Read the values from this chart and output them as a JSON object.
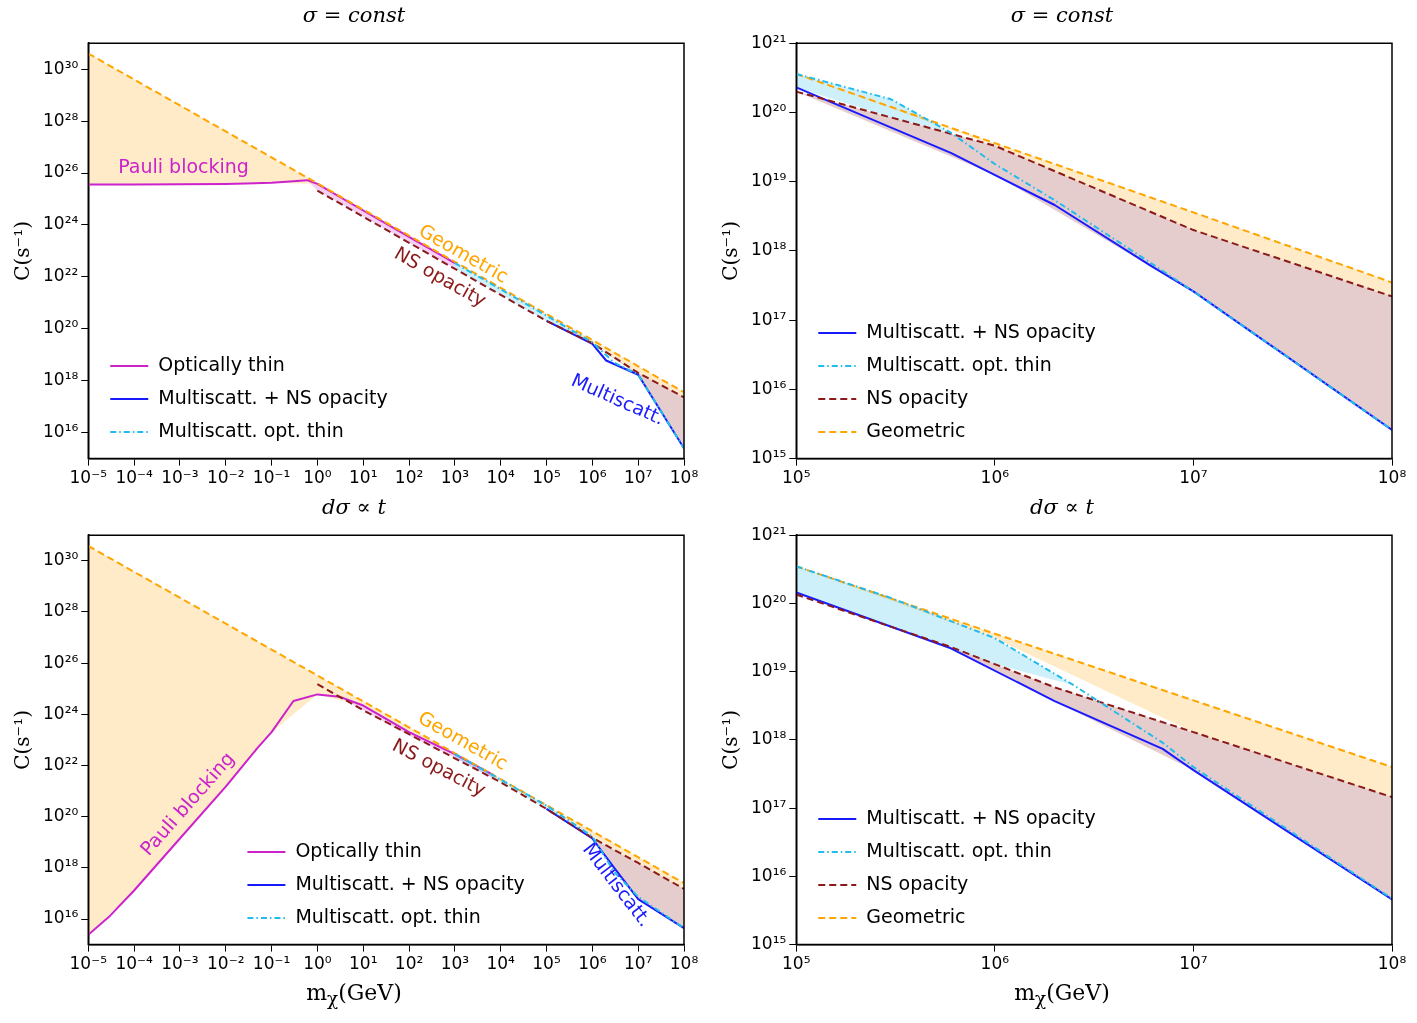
{
  "chart_data": [
    {
      "type": "line",
      "title": "σ = const",
      "ylabel": "C(s⁻¹)",
      "log": "xy",
      "legend": "bottom left",
      "xlim": [
        1e-05,
        100000000.0
      ],
      "ylim": [
        1000000000000000.0,
        1e+31
      ],
      "xticks": [
        {
          "value": 1e-05,
          "label": "10⁻⁵"
        },
        {
          "value": 0.0001,
          "label": "10⁻⁴"
        },
        {
          "value": 0.001,
          "label": "10⁻³"
        },
        {
          "value": 0.01,
          "label": "10⁻²"
        },
        {
          "value": 0.1,
          "label": "10⁻¹"
        },
        {
          "value": 1,
          "label": "10⁰"
        },
        {
          "value": 10,
          "label": "10¹"
        },
        {
          "value": 100,
          "label": "10²"
        },
        {
          "value": 1000.0,
          "label": "10³"
        },
        {
          "value": 10000.0,
          "label": "10⁴"
        },
        {
          "value": 100000.0,
          "label": "10⁵"
        },
        {
          "value": 1000000.0,
          "label": "10⁶"
        },
        {
          "value": 10000000.0,
          "label": "10⁷"
        },
        {
          "value": 100000000.0,
          "label": "10⁸"
        }
      ],
      "yticks": [
        {
          "value": 1e+16,
          "label": "10¹⁶"
        },
        {
          "value": 1e+18,
          "label": "10¹⁸"
        },
        {
          "value": 1e+20,
          "label": "10²⁰"
        },
        {
          "value": 1e+22,
          "label": "10²²"
        },
        {
          "value": 1e+24,
          "label": "10²⁴"
        },
        {
          "value": 1e+26,
          "label": "10²⁶"
        },
        {
          "value": 1e+28,
          "label": "10²⁸"
        },
        {
          "value": 1e+30,
          "label": "10³⁰"
        }
      ],
      "series": [
        {
          "name": "Optically thin",
          "color": "#cc22cc",
          "line_style": "solid",
          "x": [
            1e-05,
            0.0001,
            0.001,
            0.01,
            0.1,
            0.3,
            0.6,
            1,
            10,
            100,
            1000.0
          ],
          "values": [
            3.6e+25,
            3.6e+25,
            3.7e+25,
            3.8e+25,
            4.2e+25,
            4.8e+25,
            5.3e+25,
            3.8e+25,
            3.6e+24,
            3.5e+23,
            3.4e+22
          ],
          "lower": [
            3.6e+25,
            3.6e+25,
            3.7e+25,
            3.8e+25,
            4.2e+25,
            4.8e+25,
            5.3e+25,
            2.1e+25,
            2.1e+24,
            2.1e+23,
            2.1e+22
          ],
          "upper": [
            3.6e+25,
            3.6e+25,
            3.7e+25,
            3.8e+25,
            4.2e+25,
            4.8e+25,
            5.3e+25,
            3.8e+25,
            3.6e+24,
            3.5e+23,
            3.4e+22
          ]
        },
        {
          "name": "Multiscatt. + NS opacity",
          "color": "#1a1aff",
          "line_style": "solid",
          "x": [
            100000.0,
            1000000.0,
            2000000.0,
            10000000.0,
            100000000.0
          ],
          "values": [
            2e+20,
            2.6e+19,
            6e+18,
            1.7e+18,
            2500000000000000.0
          ]
        },
        {
          "name": "Multiscatt. opt. thin",
          "color": "#22bbee",
          "line_style": "dashdot",
          "x": [
            1000.0,
            10000.0,
            100000.0,
            1000000.0,
            3000000.0,
            10000000.0,
            100000000.0
          ],
          "values": [
            3.4e+22,
            3.3e+21,
            3.2e+20,
            3e+19,
            5e+18,
            1.7e+18,
            2500000000000000.0
          ],
          "lower": [
            2.1e+22,
            2.1e+21,
            2e+20,
            2.8e+19,
            5e+18,
            1.7e+18,
            2500000000000000.0
          ],
          "upper": [
            3.4e+22,
            3.3e+21,
            3.2e+20,
            3e+19,
            5e+18,
            1.7e+18,
            2500000000000000.0
          ]
        },
        {
          "color": "#8b1a1a",
          "line_style": "dashed",
          "x": [
            1,
            100000.0,
            1000000.0,
            10000000.0,
            100000000.0
          ],
          "values": [
            2.1e+25,
            2e+20,
            2.8e+19,
            2e+18,
            2.3e+17
          ],
          "lower": [
            2.1e+25,
            2e+20,
            2.6e+19,
            1.7e+18,
            2500000000000000.0
          ],
          "upper": [
            2.1e+25,
            2e+20,
            2.8e+19,
            2e+18,
            2.3e+17
          ]
        },
        {
          "color": "#ffa500",
          "line_style": "dashed",
          "x": [
            1e-05,
            0.0001,
            0.001,
            0.01,
            0.1,
            1,
            10,
            100,
            1000.0,
            10000.0,
            100000.0,
            1000000.0,
            10000000.0,
            100000000.0
          ],
          "values": [
            4e+30,
            4e+29,
            4e+28,
            4e+27,
            4e+26,
            4e+25,
            3.9e+24,
            3.9e+23,
            3.8e+22,
            3.8e+21,
            3.7e+20,
            3.7e+19,
            3.6e+18,
            3.6e+17
          ],
          "lower": [
            3.6e+25,
            3.6e+25,
            3.7e+25,
            3.8e+25,
            4.2e+25,
            3.8e+25,
            3.6e+24,
            3.5e+23,
            3.4e+22,
            3.3e+21,
            3.2e+20,
            3e+19,
            2e+18,
            2.3e+17
          ],
          "upper": [
            4e+30,
            4e+29,
            4e+28,
            4e+27,
            4e+26,
            4e+25,
            3.9e+24,
            3.9e+23,
            3.8e+22,
            3.8e+21,
            3.7e+20,
            3.7e+19,
            3.6e+18,
            3.6e+17
          ]
        }
      ],
      "annotations": [
        "Pauli blocking",
        "Geometric",
        "NS opacity",
        "Multiscatt."
      ]
    },
    {
      "type": "line",
      "title": "σ = const",
      "ylabel": "C(s⁻¹)",
      "log": "xy",
      "legend": "bottom left",
      "xlim": [
        100000.0,
        100000000.0
      ],
      "ylim": [
        1000000000000000.0,
        1e+21
      ],
      "xticks": [
        {
          "value": 100000.0,
          "label": "10⁵"
        },
        {
          "value": 1000000.0,
          "label": "10⁶"
        },
        {
          "value": 10000000.0,
          "label": "10⁷"
        },
        {
          "value": 100000000.0,
          "label": "10⁸"
        }
      ],
      "yticks": [
        {
          "value": 1000000000000000.0,
          "label": "10¹⁵"
        },
        {
          "value": 1e+16,
          "label": "10¹⁶"
        },
        {
          "value": 1e+17,
          "label": "10¹⁷"
        },
        {
          "value": 1e+18,
          "label": "10¹⁸"
        },
        {
          "value": 1e+19,
          "label": "10¹⁹"
        },
        {
          "value": 1e+20,
          "label": "10²⁰"
        },
        {
          "value": 1e+21,
          "label": "10²¹"
        }
      ],
      "series": [
        {
          "name": "Multiscatt. + NS opacity",
          "color": "#1a1aff",
          "line_style": "solid",
          "x": [
            100000.0,
            600000.0,
            2000000.0,
            6000000.0,
            10000000.0,
            100000000.0
          ],
          "values": [
            2.3e+20,
            2.6e+19,
            4.6e+18,
            6.3e+17,
            2.6e+17,
            2600000000000000.0
          ]
        },
        {
          "name": "Multiscatt. opt. thin",
          "color": "#22bbee",
          "line_style": "dashdot",
          "x": [
            100000.0,
            300000.0,
            600000.0,
            1000000.0,
            2000000.0,
            6000000.0,
            10000000.0,
            100000000.0
          ],
          "values": [
            3.6e+20,
            1.55e+20,
            5.1e+19,
            1.8e+19,
            5.4e+18,
            6.9e+17,
            2.6e+17,
            2600000000000000.0
          ],
          "lower": [
            2.3e+20,
            8.5e+19,
            5e+19,
            1.8e+19,
            5.4e+18,
            6.9e+17,
            2.6e+17,
            2600000000000000.0
          ],
          "upper": [
            3.6e+20,
            1.55e+20,
            5.1e+19,
            1.8e+19,
            5.4e+18,
            6.9e+17,
            2.6e+17,
            2600000000000000.0
          ]
        },
        {
          "name": "NS opacity",
          "color": "#8b1a1a",
          "line_style": "dashed",
          "x": [
            100000.0,
            1000000.0,
            10000000.0,
            100000000.0
          ],
          "values": [
            2e+20,
            3.3e+19,
            2e+18,
            2.2e+17
          ],
          "lower": [
            2e+20,
            1.25e+19,
            2.6e+17,
            2600000000000000.0
          ],
          "upper": [
            2e+20,
            3.3e+19,
            2e+18,
            2.2e+17
          ]
        },
        {
          "name": "Geometric",
          "color": "#ffa500",
          "line_style": "dashed",
          "x": [
            100000.0,
            1000000.0,
            10000000.0,
            100000000.0
          ],
          "values": [
            3.6e+20,
            3.6e+19,
            3.6e+18,
            3.5e+17
          ],
          "lower": [
            3.6e+20,
            3.3e+19,
            2e+18,
            2.2e+17
          ],
          "upper": [
            3.6e+20,
            3.6e+19,
            3.6e+18,
            3.5e+17
          ]
        }
      ]
    },
    {
      "type": "line",
      "title": "dσ ∝ t",
      "xlabel": "m$_{χ}$(GeV)",
      "ylabel": "C(s⁻¹)",
      "log": "xy",
      "legend": "bottom",
      "xlim": [
        1e-05,
        100000000.0
      ],
      "ylim": [
        1000000000000000.0,
        1e+31
      ],
      "xticks": [
        {
          "value": 1e-05,
          "label": "10⁻⁵"
        },
        {
          "value": 0.0001,
          "label": "10⁻⁴"
        },
        {
          "value": 0.001,
          "label": "10⁻³"
        },
        {
          "value": 0.01,
          "label": "10⁻²"
        },
        {
          "value": 0.1,
          "label": "10⁻¹"
        },
        {
          "value": 1,
          "label": "10⁰"
        },
        {
          "value": 10,
          "label": "10¹"
        },
        {
          "value": 100,
          "label": "10²"
        },
        {
          "value": 1000.0,
          "label": "10³"
        },
        {
          "value": 10000.0,
          "label": "10⁴"
        },
        {
          "value": 100000.0,
          "label": "10⁵"
        },
        {
          "value": 1000000.0,
          "label": "10⁶"
        },
        {
          "value": 10000000.0,
          "label": "10⁷"
        },
        {
          "value": 100000000.0,
          "label": "10⁸"
        }
      ],
      "yticks": [
        {
          "value": 1e+16,
          "label": "10¹⁶"
        },
        {
          "value": 1e+18,
          "label": "10¹⁸"
        },
        {
          "value": 1e+20,
          "label": "10²⁰"
        },
        {
          "value": 1e+22,
          "label": "10²²"
        },
        {
          "value": 1e+24,
          "label": "10²⁴"
        },
        {
          "value": 1e+26,
          "label": "10²⁶"
        },
        {
          "value": 1e+28,
          "label": "10²⁸"
        },
        {
          "value": 1e+30,
          "label": "10³⁰"
        }
      ],
      "series": [
        {
          "name": "Optically thin",
          "color": "#cc22cc",
          "line_style": "solid",
          "x": [
            1e-05,
            3e-05,
            0.0001,
            0.001,
            0.01,
            0.05,
            0.1,
            0.3,
            1,
            3,
            10,
            100,
            1000.0,
            7000.0
          ],
          "values": [
            2400000000000000.0,
            1.35e+16,
            1.3e+17,
            1.4e+19,
            1.5e+21,
            5e+22,
            2e+23,
            3.3e+24,
            6e+24,
            4.9e+24,
            2.2e+24,
            2e+23,
            2.8e+22,
            4.2e+21
          ],
          "lower": [
            2400000000000000.0,
            1.35e+16,
            1.3e+17,
            1.4e+19,
            1.5e+21,
            5e+22,
            2e+23,
            3.3e+24,
            6e+24,
            4.9e+24,
            1.45e+24,
            1.5e+23,
            2e+22,
            3e+21
          ],
          "upper": [
            2400000000000000.0,
            1.35e+16,
            1.3e+17,
            1.4e+19,
            1.5e+21,
            5e+22,
            2e+23,
            3.3e+24,
            6e+24,
            4.9e+24,
            2.2e+24,
            2e+23,
            2.8e+22,
            4.2e+21
          ]
        },
        {
          "name": "Multiscatt. + NS opacity",
          "color": "#1a1aff",
          "line_style": "solid",
          "x": [
            100000.0,
            1000000.0,
            3000000.0,
            10000000.0,
            100000000.0
          ],
          "values": [
            2e+20,
            1.4e+19,
            1e+18,
            6e+16,
            4400000000000000.0
          ]
        },
        {
          "name": "Multiscatt. opt. thin",
          "color": "#22bbee",
          "line_style": "dashdot",
          "x": [
            1000.0,
            10000.0,
            100000.0,
            1000000.0,
            3000000.0,
            10000000.0,
            100000000.0
          ],
          "values": [
            2.8e+22,
            2.8e+21,
            2.7e+20,
            1.7e+19,
            6.9e+17,
            7.4e+16,
            4400000000000000.0
          ],
          "lower": [
            2e+22,
            2.2e+21,
            2e+20,
            1.7e+19,
            6.9e+17,
            7.4e+16,
            4400000000000000.0
          ],
          "upper": [
            2.8e+22,
            2.8e+21,
            2.7e+20,
            1.7e+19,
            6.9e+17,
            7.4e+16,
            4400000000000000.0
          ]
        },
        {
          "color": "#8b1a1a",
          "line_style": "dashed",
          "x": [
            1,
            10,
            10000.0,
            100000.0,
            1000000.0,
            10000000.0,
            100000000.0
          ],
          "values": [
            1.5e+25,
            1.45e+24,
            2.2e+21,
            2e+20,
            1.5e+19,
            1.55e+18,
            1.5e+17
          ],
          "lower": [
            1.5e+25,
            1.45e+24,
            2.2e+21,
            2e+20,
            1.4e+19,
            6e+16,
            4400000000000000.0
          ],
          "upper": [
            1.5e+25,
            1.45e+24,
            2.2e+21,
            2e+20,
            1.5e+19,
            1.55e+18,
            1.5e+17
          ]
        },
        {
          "color": "#ffa500",
          "line_style": "dashed",
          "x": [
            1e-05,
            0.0001,
            0.001,
            0.01,
            0.1,
            1,
            10,
            100,
            1000.0,
            10000.0,
            100000.0,
            1000000.0,
            10000000.0,
            100000000.0
          ],
          "values": [
            3.8e+30,
            3.7e+29,
            3.6e+28,
            3.5e+27,
            3.4e+26,
            3.3e+25,
            3.2e+24,
            3.1e+23,
            3e+22,
            2.9e+21,
            2.8e+20,
            2.7e+19,
            2.6e+18,
            2.5e+17
          ],
          "lower": [
            2400000000000000.0,
            1.3e+17,
            1.4e+19,
            1.5e+21,
            2e+23,
            6e+24,
            2.2e+24,
            2e+23,
            2.8e+22,
            2.8e+21,
            2.7e+20,
            1.7e+19,
            1.55e+18,
            1.5e+17
          ],
          "upper": [
            3.8e+30,
            3.7e+29,
            3.6e+28,
            3.5e+27,
            3.4e+26,
            3.3e+25,
            3.2e+24,
            3.1e+23,
            3e+22,
            2.9e+21,
            2.8e+20,
            2.7e+19,
            2.6e+18,
            2.5e+17
          ]
        }
      ],
      "annotations": [
        "Pauli blocking",
        "Geometric",
        "NS opacity",
        "Multiscatt."
      ]
    },
    {
      "type": "line",
      "title": "dσ ∝ t",
      "xlabel": "m$_{χ}$(GeV)",
      "ylabel": "C(s⁻¹)",
      "log": "xy",
      "legend": "bottom left",
      "xlim": [
        100000.0,
        100000000.0
      ],
      "ylim": [
        1000000000000000.0,
        1e+21
      ],
      "xticks": [
        {
          "value": 100000.0,
          "label": "10⁵"
        },
        {
          "value": 1000000.0,
          "label": "10⁶"
        },
        {
          "value": 10000000.0,
          "label": "10⁷"
        },
        {
          "value": 100000000.0,
          "label": "10⁸"
        }
      ],
      "yticks": [
        {
          "value": 1000000000000000.0,
          "label": "10¹⁵"
        },
        {
          "value": 1e+16,
          "label": "10¹⁶"
        },
        {
          "value": 1e+17,
          "label": "10¹⁷"
        },
        {
          "value": 1e+18,
          "label": "10¹⁸"
        },
        {
          "value": 1e+19,
          "label": "10¹⁹"
        },
        {
          "value": 1e+20,
          "label": "10²⁰"
        },
        {
          "value": 1e+21,
          "label": "10²¹"
        }
      ],
      "series": [
        {
          "name": "Multiscatt. + NS opacity",
          "color": "#1a1aff",
          "line_style": "solid",
          "x": [
            100000.0,
            600000.0,
            2000000.0,
            7000000.0,
            10000000.0,
            100000000.0
          ],
          "values": [
            1.45e+20,
            2.2e+19,
            3.7e+18,
            7.4e+17,
            3.6e+17,
            4600000000000000.0
          ]
        },
        {
          "name": "Multiscatt. opt. thin",
          "color": "#22bbee",
          "line_style": "dashdot",
          "x": [
            100000.0,
            300000.0,
            1000000.0,
            2500000.0,
            7000000.0,
            10000000.0,
            100000000.0
          ],
          "values": [
            3.5e+20,
            1.2e+20,
            3.1e+19,
            6.3e+18,
            9.1e+17,
            4e+17,
            4700000000000000.0
          ],
          "lower": [
            1.45e+20,
            4.6e+19,
            1.3e+19,
            6.3e+18,
            9.1e+17,
            4e+17,
            4700000000000000.0
          ],
          "upper": [
            3.5e+20,
            1.2e+20,
            3.1e+19,
            6.3e+18,
            9.1e+17,
            4e+17,
            4700000000000000.0
          ]
        },
        {
          "name": "NS opacity",
          "color": "#8b1a1a",
          "line_style": "dashed",
          "x": [
            100000.0,
            600000.0,
            2000000.0,
            10000000.0,
            100000000.0
          ],
          "values": [
            1.35e+20,
            2.3e+19,
            5.9e+18,
            1.3e+18,
            1.45e+17
          ],
          "lower": [
            1.35e+20,
            2.2e+19,
            3.7e+18,
            3.6e+17,
            4600000000000000.0
          ],
          "upper": [
            1.35e+20,
            2.3e+19,
            5.9e+18,
            1.3e+18,
            1.45e+17
          ]
        },
        {
          "name": "Geometric",
          "color": "#ffa500",
          "line_style": "dashed",
          "x": [
            100000.0,
            1000000.0,
            10000000.0,
            100000000.0
          ],
          "values": [
            3.5e+20,
            3.6e+19,
            3.8e+18,
            4e+17
          ],
          "lower": [
            3.5e+20,
            3.1e+19,
            1.3e+18,
            1.45e+17
          ],
          "upper": [
            3.5e+20,
            3.6e+19,
            3.8e+18,
            4e+17
          ]
        }
      ]
    }
  ]
}
